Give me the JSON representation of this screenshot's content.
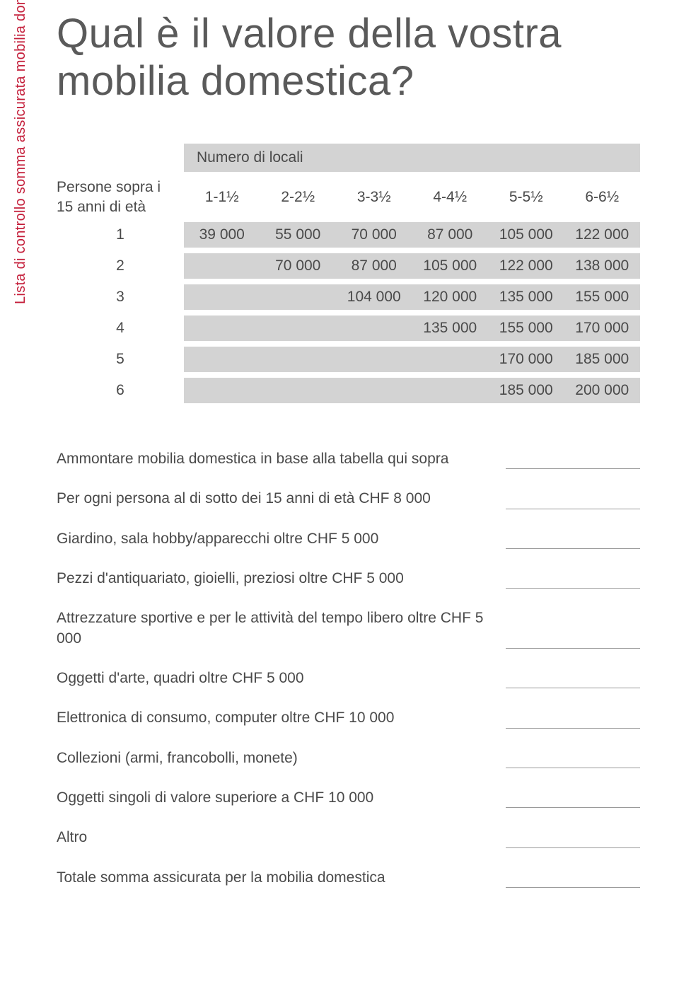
{
  "vertical_label": "Lista di controllo somma assicurata mobilia domestica",
  "title": "Qual è il valore della vostra mobilia domestica?",
  "table": {
    "caption": "Numero di locali",
    "row_header": "Persone sopra i 15 anni di età",
    "col_headers": [
      "1-1½",
      "2-2½",
      "3-3½",
      "4-4½",
      "5-5½",
      "6-6½"
    ],
    "rows": [
      {
        "num": "1",
        "cells": [
          "39 000",
          "55 000",
          "70 000",
          "87 000",
          "105 000",
          "122 000"
        ]
      },
      {
        "num": "2",
        "cells": [
          "",
          "70 000",
          "87 000",
          "105 000",
          "122 000",
          "138 000"
        ]
      },
      {
        "num": "3",
        "cells": [
          "",
          "",
          "104 000",
          "120 000",
          "135 000",
          "155 000"
        ]
      },
      {
        "num": "4",
        "cells": [
          "",
          "",
          "",
          "135 000",
          "155 000",
          "170 000"
        ]
      },
      {
        "num": "5",
        "cells": [
          "",
          "",
          "",
          "",
          "170 000",
          "185 000"
        ]
      },
      {
        "num": "6",
        "cells": [
          "",
          "",
          "",
          "",
          "185 000",
          "200 000"
        ]
      }
    ],
    "colors": {
      "header_bg": "#d3d3d3",
      "cell_bg": "#d3d3d3",
      "text": "#4a4a4a",
      "accent": "#c41e3a"
    }
  },
  "checklist": {
    "items": [
      "Ammontare mobilia domestica in base alla tabella qui sopra",
      "Per ogni persona al di sotto dei 15 anni di età CHF 8 000",
      "Giardino, sala hobby/apparecchi oltre CHF 5 000",
      "Pezzi d'antiquariato, gioielli, preziosi oltre CHF 5 000",
      "Attrezzature sportive e per le attività del tempo libero oltre CHF 5 000",
      "Oggetti d'arte, quadri oltre CHF 5 000",
      "Elettronica di consumo, computer oltre CHF 10 000",
      "Collezioni (armi, francobolli, monete)",
      "Oggetti singoli di valore superiore a CHF 10 000",
      "Altro",
      "Totale somma assicurata per la mobilia domestica"
    ]
  }
}
